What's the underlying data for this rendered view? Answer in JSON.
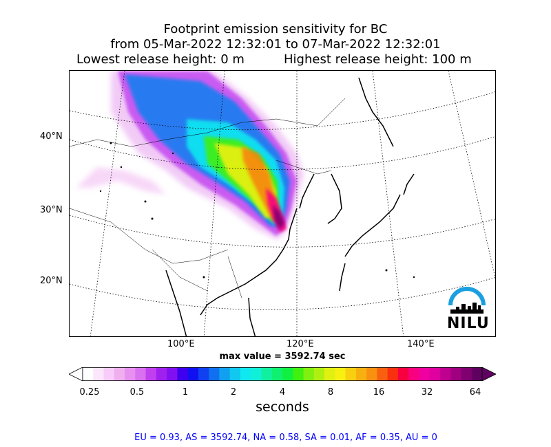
{
  "title": {
    "line1": "Footprint emission sensitivity for BC",
    "line2": "from 05-Mar-2022 12:32:01 to 07-Mar-2022 12:32:01",
    "line3_left": "Lowest release height: 0 m",
    "line3_right": "Highest release height: 100 m"
  },
  "map": {
    "lat_labels": [
      "40°N",
      "30°N",
      "20°N"
    ],
    "lon_labels": [
      "100°E",
      "120°E",
      "140°E"
    ],
    "logo_text": "NILU"
  },
  "max_value": "max value = 3592.74 sec",
  "colorbar": {
    "ticks": [
      "0.25",
      "0.5",
      "1",
      "2",
      "4",
      "8",
      "16",
      "32",
      "64"
    ],
    "units": "seconds",
    "colors": [
      "#ffffff",
      "#fce6fc",
      "#f8ccf8",
      "#f0b0f0",
      "#e890f0",
      "#d870f0",
      "#c040f0",
      "#a020f0",
      "#8010f0",
      "#4000f0",
      "#1010f0",
      "#1040f0",
      "#1070f0",
      "#10a0f0",
      "#10c8f0",
      "#10e8f0",
      "#10f0d8",
      "#10f0a0",
      "#10f070",
      "#10f040",
      "#40f010",
      "#80f010",
      "#b0f010",
      "#e0f010",
      "#f8f010",
      "#f8d010",
      "#f8b010",
      "#f89010",
      "#f86010",
      "#f83010",
      "#f80040",
      "#f80080",
      "#f000a0",
      "#e000a0",
      "#c00090",
      "#a00080",
      "#800070",
      "#600060"
    ]
  },
  "footer": "EU = 0.93,  AS = 3592.74,  NA = 0.58,  SA = 0.01,  AF = 0.35,  AU = 0"
}
